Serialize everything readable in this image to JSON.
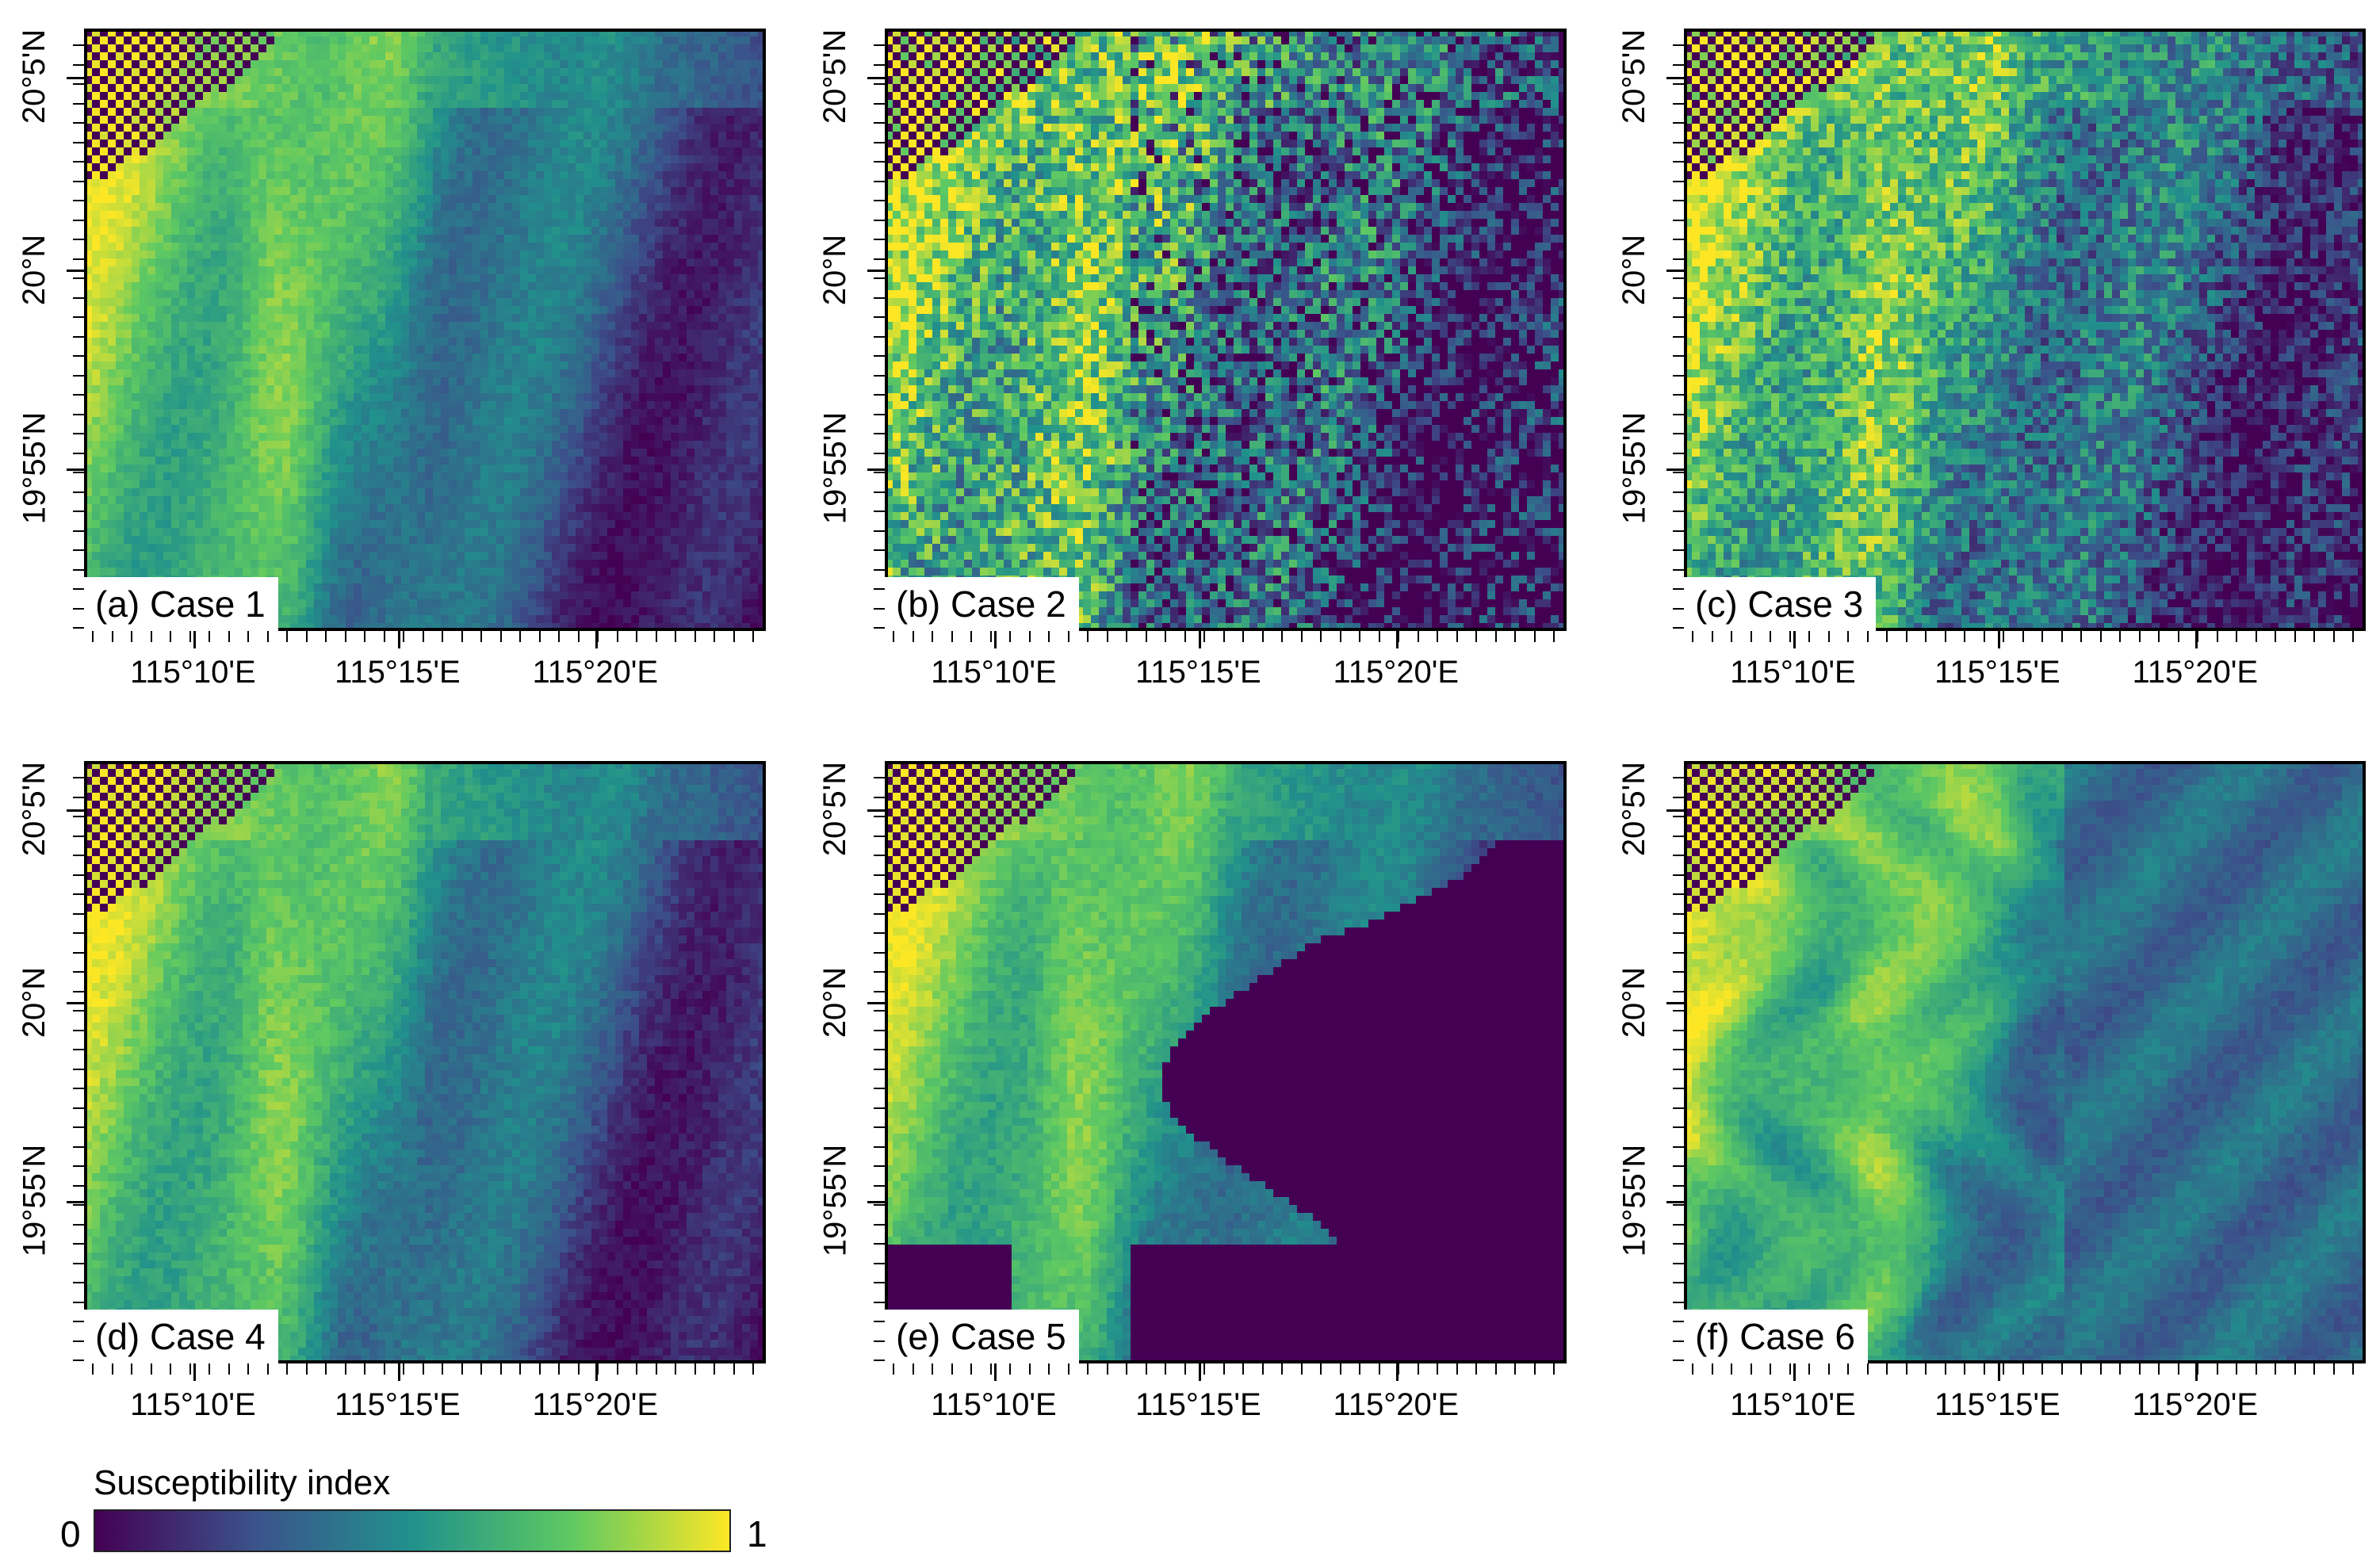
{
  "panels": [
    {
      "label": "(a) Case 1",
      "pattern": "smooth"
    },
    {
      "label": "(b) Case 2",
      "pattern": "noisy"
    },
    {
      "label": "(c) Case 3",
      "pattern": "noisy-mid"
    },
    {
      "label": "(d) Case 4",
      "pattern": "smooth"
    },
    {
      "label": "(e) Case 5",
      "pattern": "masked"
    },
    {
      "label": "(f) Case 6",
      "pattern": "swirl"
    }
  ],
  "axes": {
    "y_labels": [
      "20°5'N",
      "20°N",
      "19°55'N"
    ],
    "x_labels": [
      "115°10'E",
      "115°15'E",
      "115°20'E"
    ]
  },
  "colorbar": {
    "title": "Susceptibility index",
    "min_label": "0",
    "max_label": "1",
    "colormap": "viridis",
    "colors": [
      "#440154",
      "#3b528b",
      "#21918c",
      "#5ec962",
      "#fde725"
    ]
  }
}
